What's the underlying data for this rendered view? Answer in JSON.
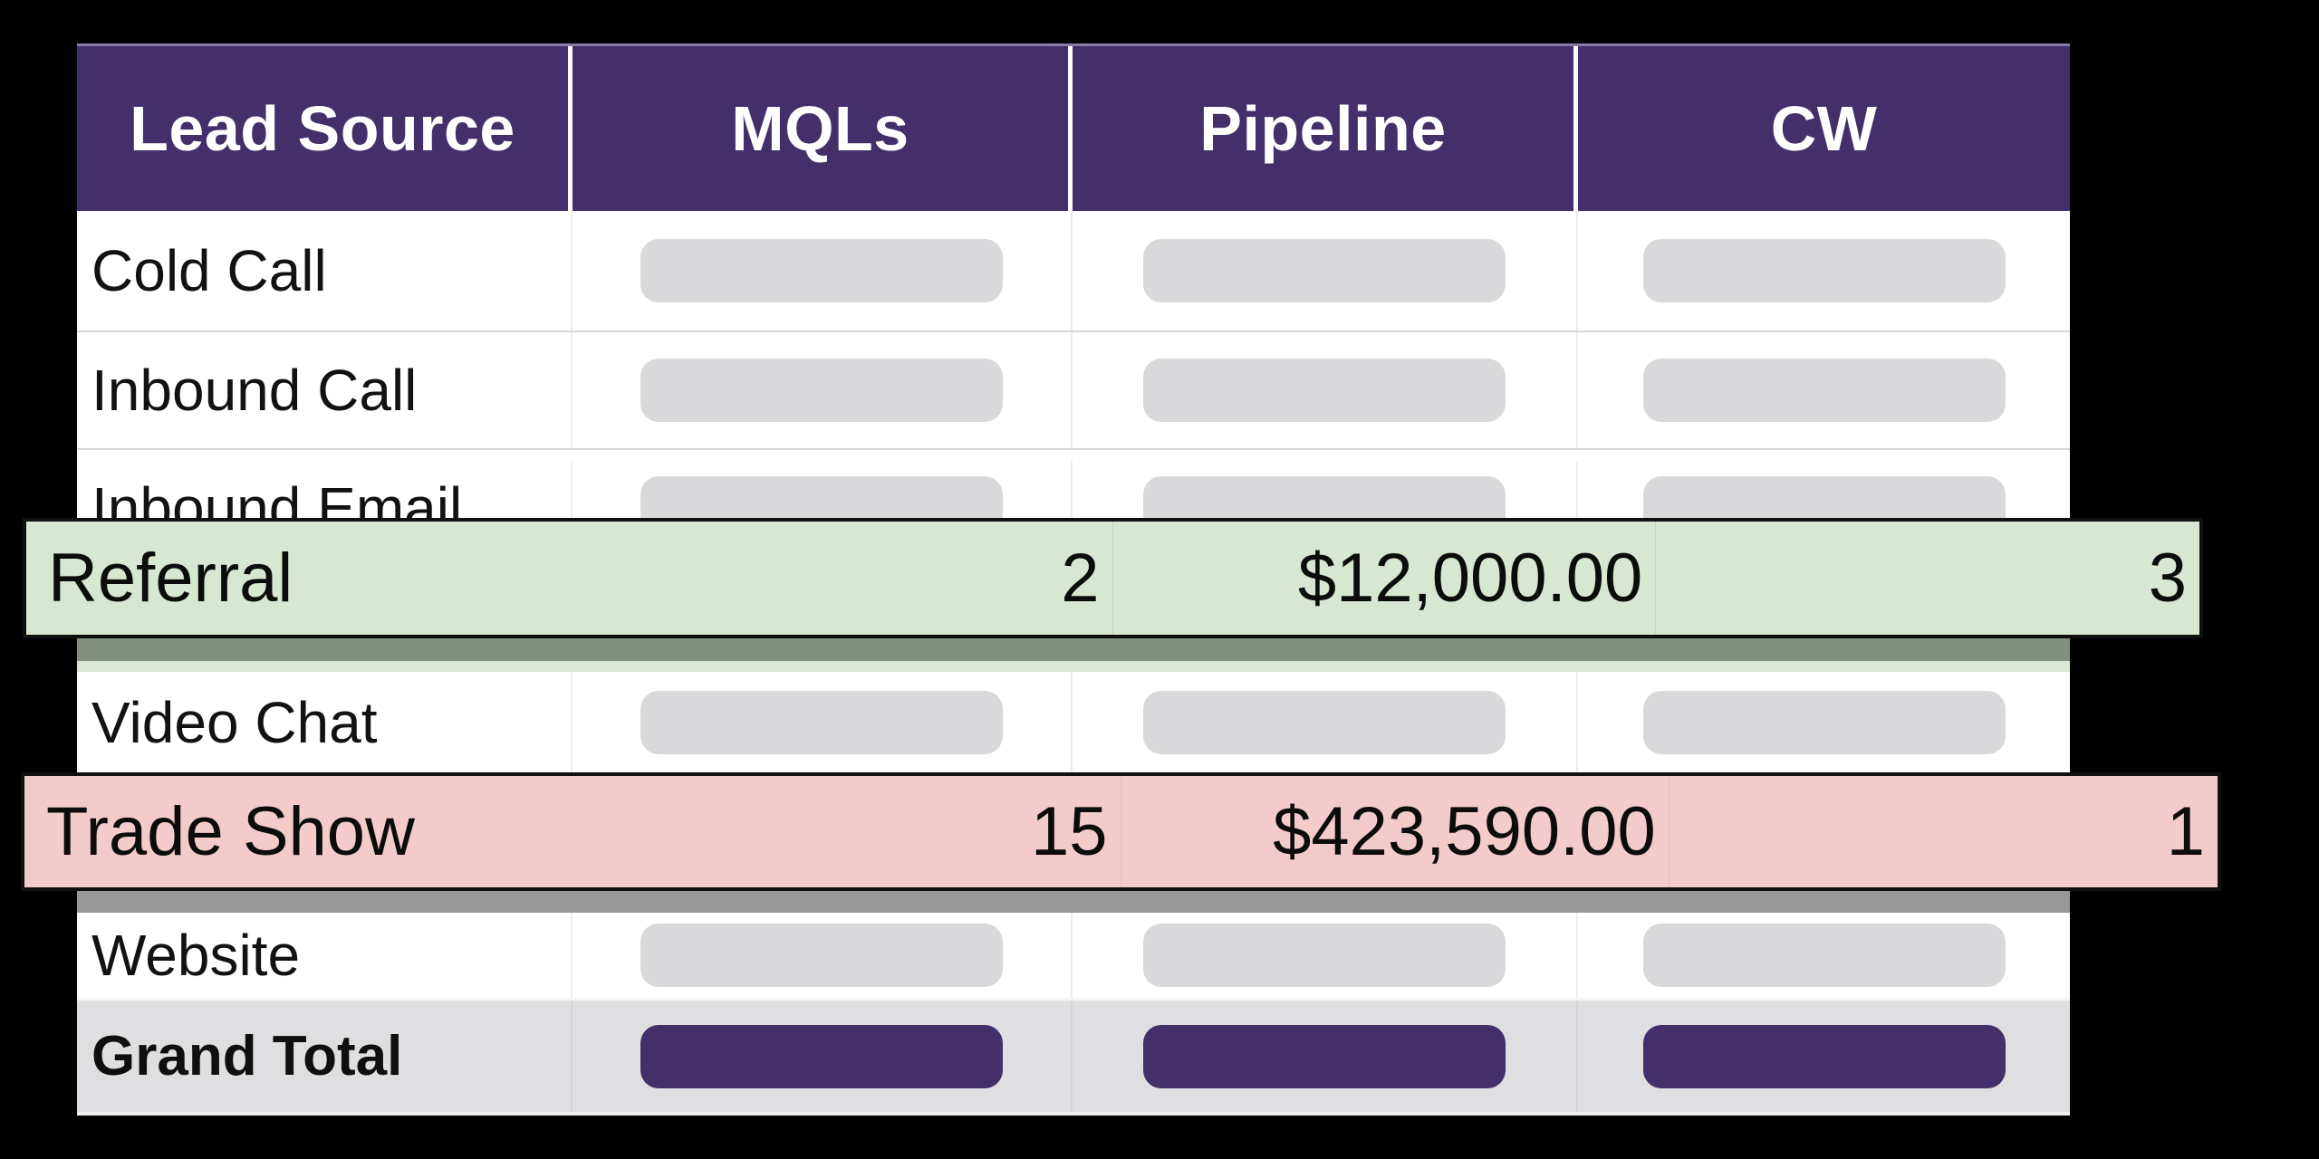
{
  "chart_data": {
    "type": "table",
    "columns": [
      "Lead Source",
      "MQLs",
      "Pipeline",
      "CW"
    ],
    "rows": [
      {
        "lead_source": "Cold Call",
        "mqls": null,
        "pipeline": null,
        "cw": null,
        "redacted": true,
        "highlight": null
      },
      {
        "lead_source": "Inbound Call",
        "mqls": null,
        "pipeline": null,
        "cw": null,
        "redacted": true,
        "highlight": null
      },
      {
        "lead_source": "Inbound Email",
        "mqls": null,
        "pipeline": null,
        "cw": null,
        "redacted": true,
        "highlight": null
      },
      {
        "lead_source": "Referral",
        "mqls": 2,
        "pipeline": "$12,000.00",
        "cw": 3,
        "redacted": false,
        "highlight": "green"
      },
      {
        "lead_source": "Video Chat",
        "mqls": null,
        "pipeline": null,
        "cw": null,
        "redacted": true,
        "highlight": null
      },
      {
        "lead_source": "Trade Show",
        "mqls": 15,
        "pipeline": "$423,590.00",
        "cw": 1,
        "redacted": false,
        "highlight": "pink"
      },
      {
        "lead_source": "Website",
        "mqls": null,
        "pipeline": null,
        "cw": null,
        "redacted": true,
        "highlight": null
      },
      {
        "lead_source": "Grand Total",
        "mqls": null,
        "pipeline": null,
        "cw": null,
        "redacted": true,
        "is_total": true
      }
    ],
    "legend_position": "none",
    "grid": "row-dividers"
  },
  "colors": {
    "background": "#000000",
    "header_bg": "#43306a",
    "header_text": "#ffffff",
    "row_divider": "#d8d8d8",
    "placeholder_pill": "#d9d9db",
    "total_row_bg": "#dfdfe1",
    "total_pill": "#43306a",
    "referral_highlight_bg": "#d8e7d1",
    "referral_shadow": "#83907e",
    "trade_show_highlight_bg": "#f4cbcb",
    "trade_show_shadow": "#989898"
  }
}
